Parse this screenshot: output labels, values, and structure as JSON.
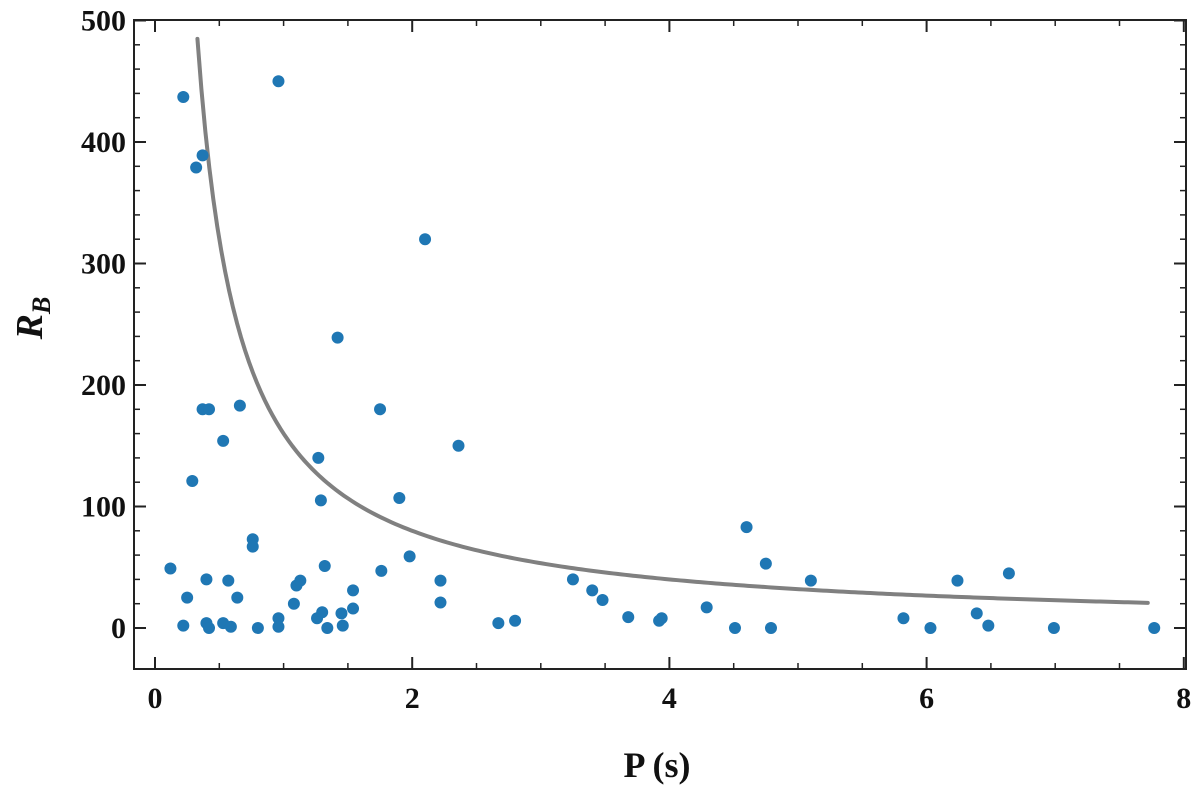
{
  "chart_data": {
    "type": "scatter",
    "xlabel": "P (s)",
    "ylabel_main": "R",
    "ylabel_sub": "B",
    "xlim": [
      -0.35,
      8
    ],
    "ylim": [
      -35,
      500
    ],
    "x_ticks": [
      0,
      2,
      4,
      6,
      8
    ],
    "y_ticks": [
      0,
      100,
      200,
      300,
      400,
      500
    ],
    "x_tick_labels": [
      "0",
      "2",
      "4",
      "6",
      "8"
    ],
    "y_tick_labels": [
      "0",
      "100",
      "200",
      "300",
      "400",
      "500"
    ],
    "grid": false,
    "colors": {
      "points": "#1f77b4",
      "curve": "#808080",
      "axis": "#222222"
    },
    "curve": {
      "type": "reciprocal",
      "coefficient": 160,
      "x_range": [
        0.33,
        7.72
      ]
    },
    "series": [
      {
        "type": "scatter",
        "points": [
          [
            0.12,
            49
          ],
          [
            0.22,
            437
          ],
          [
            0.22,
            2
          ],
          [
            0.25,
            25
          ],
          [
            0.29,
            121
          ],
          [
            0.32,
            379
          ],
          [
            0.37,
            389
          ],
          [
            0.37,
            180
          ],
          [
            0.4,
            40
          ],
          [
            0.4,
            4
          ],
          [
            0.42,
            180
          ],
          [
            0.42,
            0
          ],
          [
            0.53,
            154
          ],
          [
            0.53,
            4
          ],
          [
            0.57,
            39
          ],
          [
            0.59,
            1
          ],
          [
            0.64,
            25
          ],
          [
            0.66,
            183
          ],
          [
            0.76,
            73
          ],
          [
            0.76,
            67
          ],
          [
            0.8,
            0
          ],
          [
            0.96,
            450
          ],
          [
            0.96,
            8
          ],
          [
            0.96,
            1
          ],
          [
            1.08,
            20
          ],
          [
            1.1,
            35
          ],
          [
            1.13,
            39
          ],
          [
            1.26,
            8
          ],
          [
            1.27,
            140
          ],
          [
            1.29,
            105
          ],
          [
            1.3,
            13
          ],
          [
            1.32,
            51
          ],
          [
            1.34,
            0
          ],
          [
            1.42,
            239
          ],
          [
            1.45,
            12
          ],
          [
            1.46,
            2
          ],
          [
            1.54,
            31
          ],
          [
            1.54,
            16
          ],
          [
            1.75,
            180
          ],
          [
            1.76,
            47
          ],
          [
            1.9,
            107
          ],
          [
            1.98,
            59
          ],
          [
            2.1,
            320
          ],
          [
            2.22,
            39
          ],
          [
            2.22,
            21
          ],
          [
            2.36,
            150
          ],
          [
            2.67,
            4
          ],
          [
            2.8,
            6
          ],
          [
            3.25,
            40
          ],
          [
            3.4,
            31
          ],
          [
            3.48,
            23
          ],
          [
            3.68,
            9
          ],
          [
            3.92,
            6
          ],
          [
            3.94,
            8
          ],
          [
            4.29,
            17
          ],
          [
            4.51,
            0
          ],
          [
            4.6,
            83
          ],
          [
            4.75,
            53
          ],
          [
            4.79,
            0
          ],
          [
            5.1,
            39
          ],
          [
            5.82,
            8
          ],
          [
            6.03,
            0
          ],
          [
            6.24,
            39
          ],
          [
            6.39,
            12
          ],
          [
            6.48,
            2
          ],
          [
            6.64,
            45
          ],
          [
            6.99,
            0
          ],
          [
            7.77,
            0
          ]
        ]
      }
    ]
  }
}
